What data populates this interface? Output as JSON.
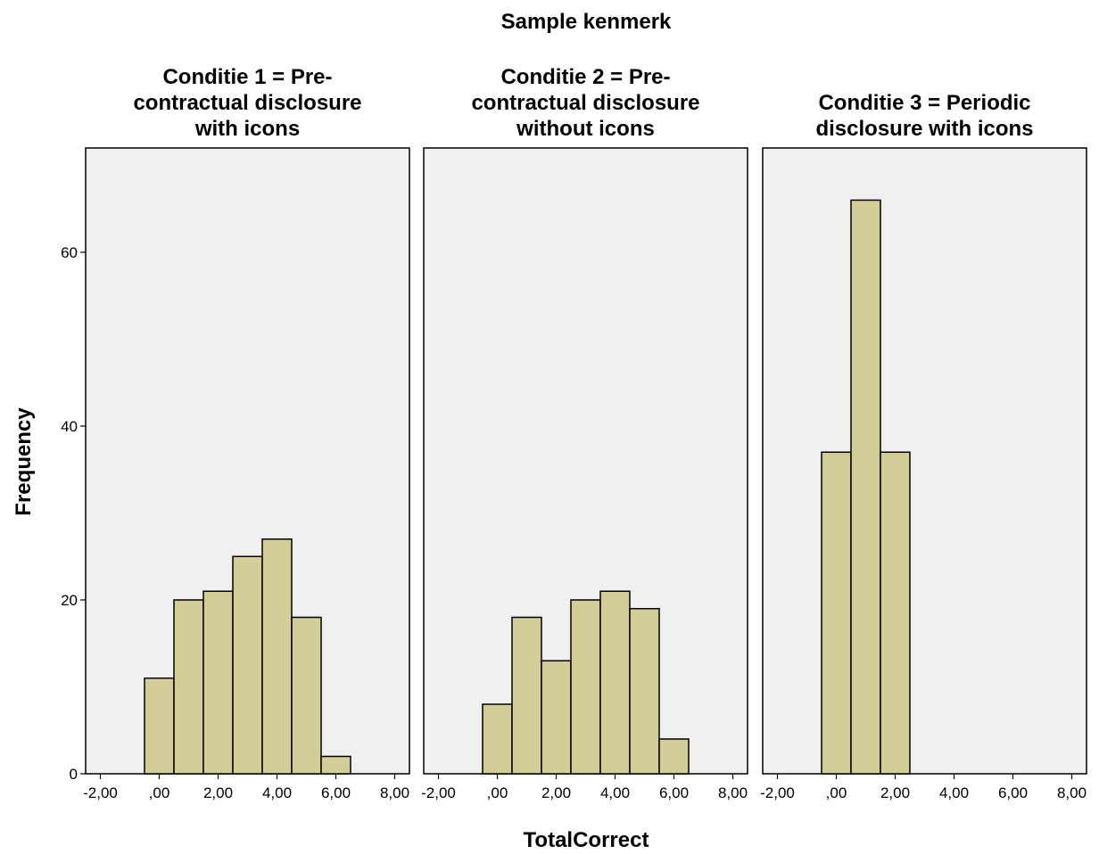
{
  "chart_data": {
    "type": "bar",
    "title": "Sample kenmerk",
    "xlabel": "TotalCorrect",
    "ylabel": "Frequency",
    "xlim": [
      -2.5,
      8.5
    ],
    "ylim": [
      0,
      72
    ],
    "x_ticks": [
      -2,
      0,
      2,
      4,
      6,
      8
    ],
    "x_tick_labels": [
      "-2,00",
      ",00",
      "2,00",
      "4,00",
      "6,00",
      "8,00"
    ],
    "y_ticks": [
      0,
      20,
      40,
      60
    ],
    "y_tick_labels": [
      "0",
      "20",
      "40",
      "60"
    ],
    "bin_width": 1,
    "colors": {
      "bar_fill": "#d3ce97",
      "panel_bg": "#f0f0f0"
    },
    "panels": [
      {
        "title_lines": [
          "Conditie 1 = Pre-",
          "contractual disclosure",
          "with icons"
        ],
        "bins": [
          {
            "x": 0,
            "count": 11
          },
          {
            "x": 1,
            "count": 20
          },
          {
            "x": 2,
            "count": 21
          },
          {
            "x": 3,
            "count": 25
          },
          {
            "x": 4,
            "count": 27
          },
          {
            "x": 5,
            "count": 18
          },
          {
            "x": 6,
            "count": 2
          }
        ]
      },
      {
        "title_lines": [
          "Conditie 2 = Pre-",
          "contractual disclosure",
          "without icons"
        ],
        "bins": [
          {
            "x": 0,
            "count": 8
          },
          {
            "x": 1,
            "count": 18
          },
          {
            "x": 2,
            "count": 13
          },
          {
            "x": 3,
            "count": 20
          },
          {
            "x": 4,
            "count": 21
          },
          {
            "x": 5,
            "count": 19
          },
          {
            "x": 6,
            "count": 4
          }
        ]
      },
      {
        "title_lines": [
          "Conditie 3 = Periodic",
          "disclosure with icons"
        ],
        "bins": [
          {
            "x": 0,
            "count": 37
          },
          {
            "x": 1,
            "count": 66
          },
          {
            "x": 2,
            "count": 37
          }
        ]
      }
    ]
  }
}
